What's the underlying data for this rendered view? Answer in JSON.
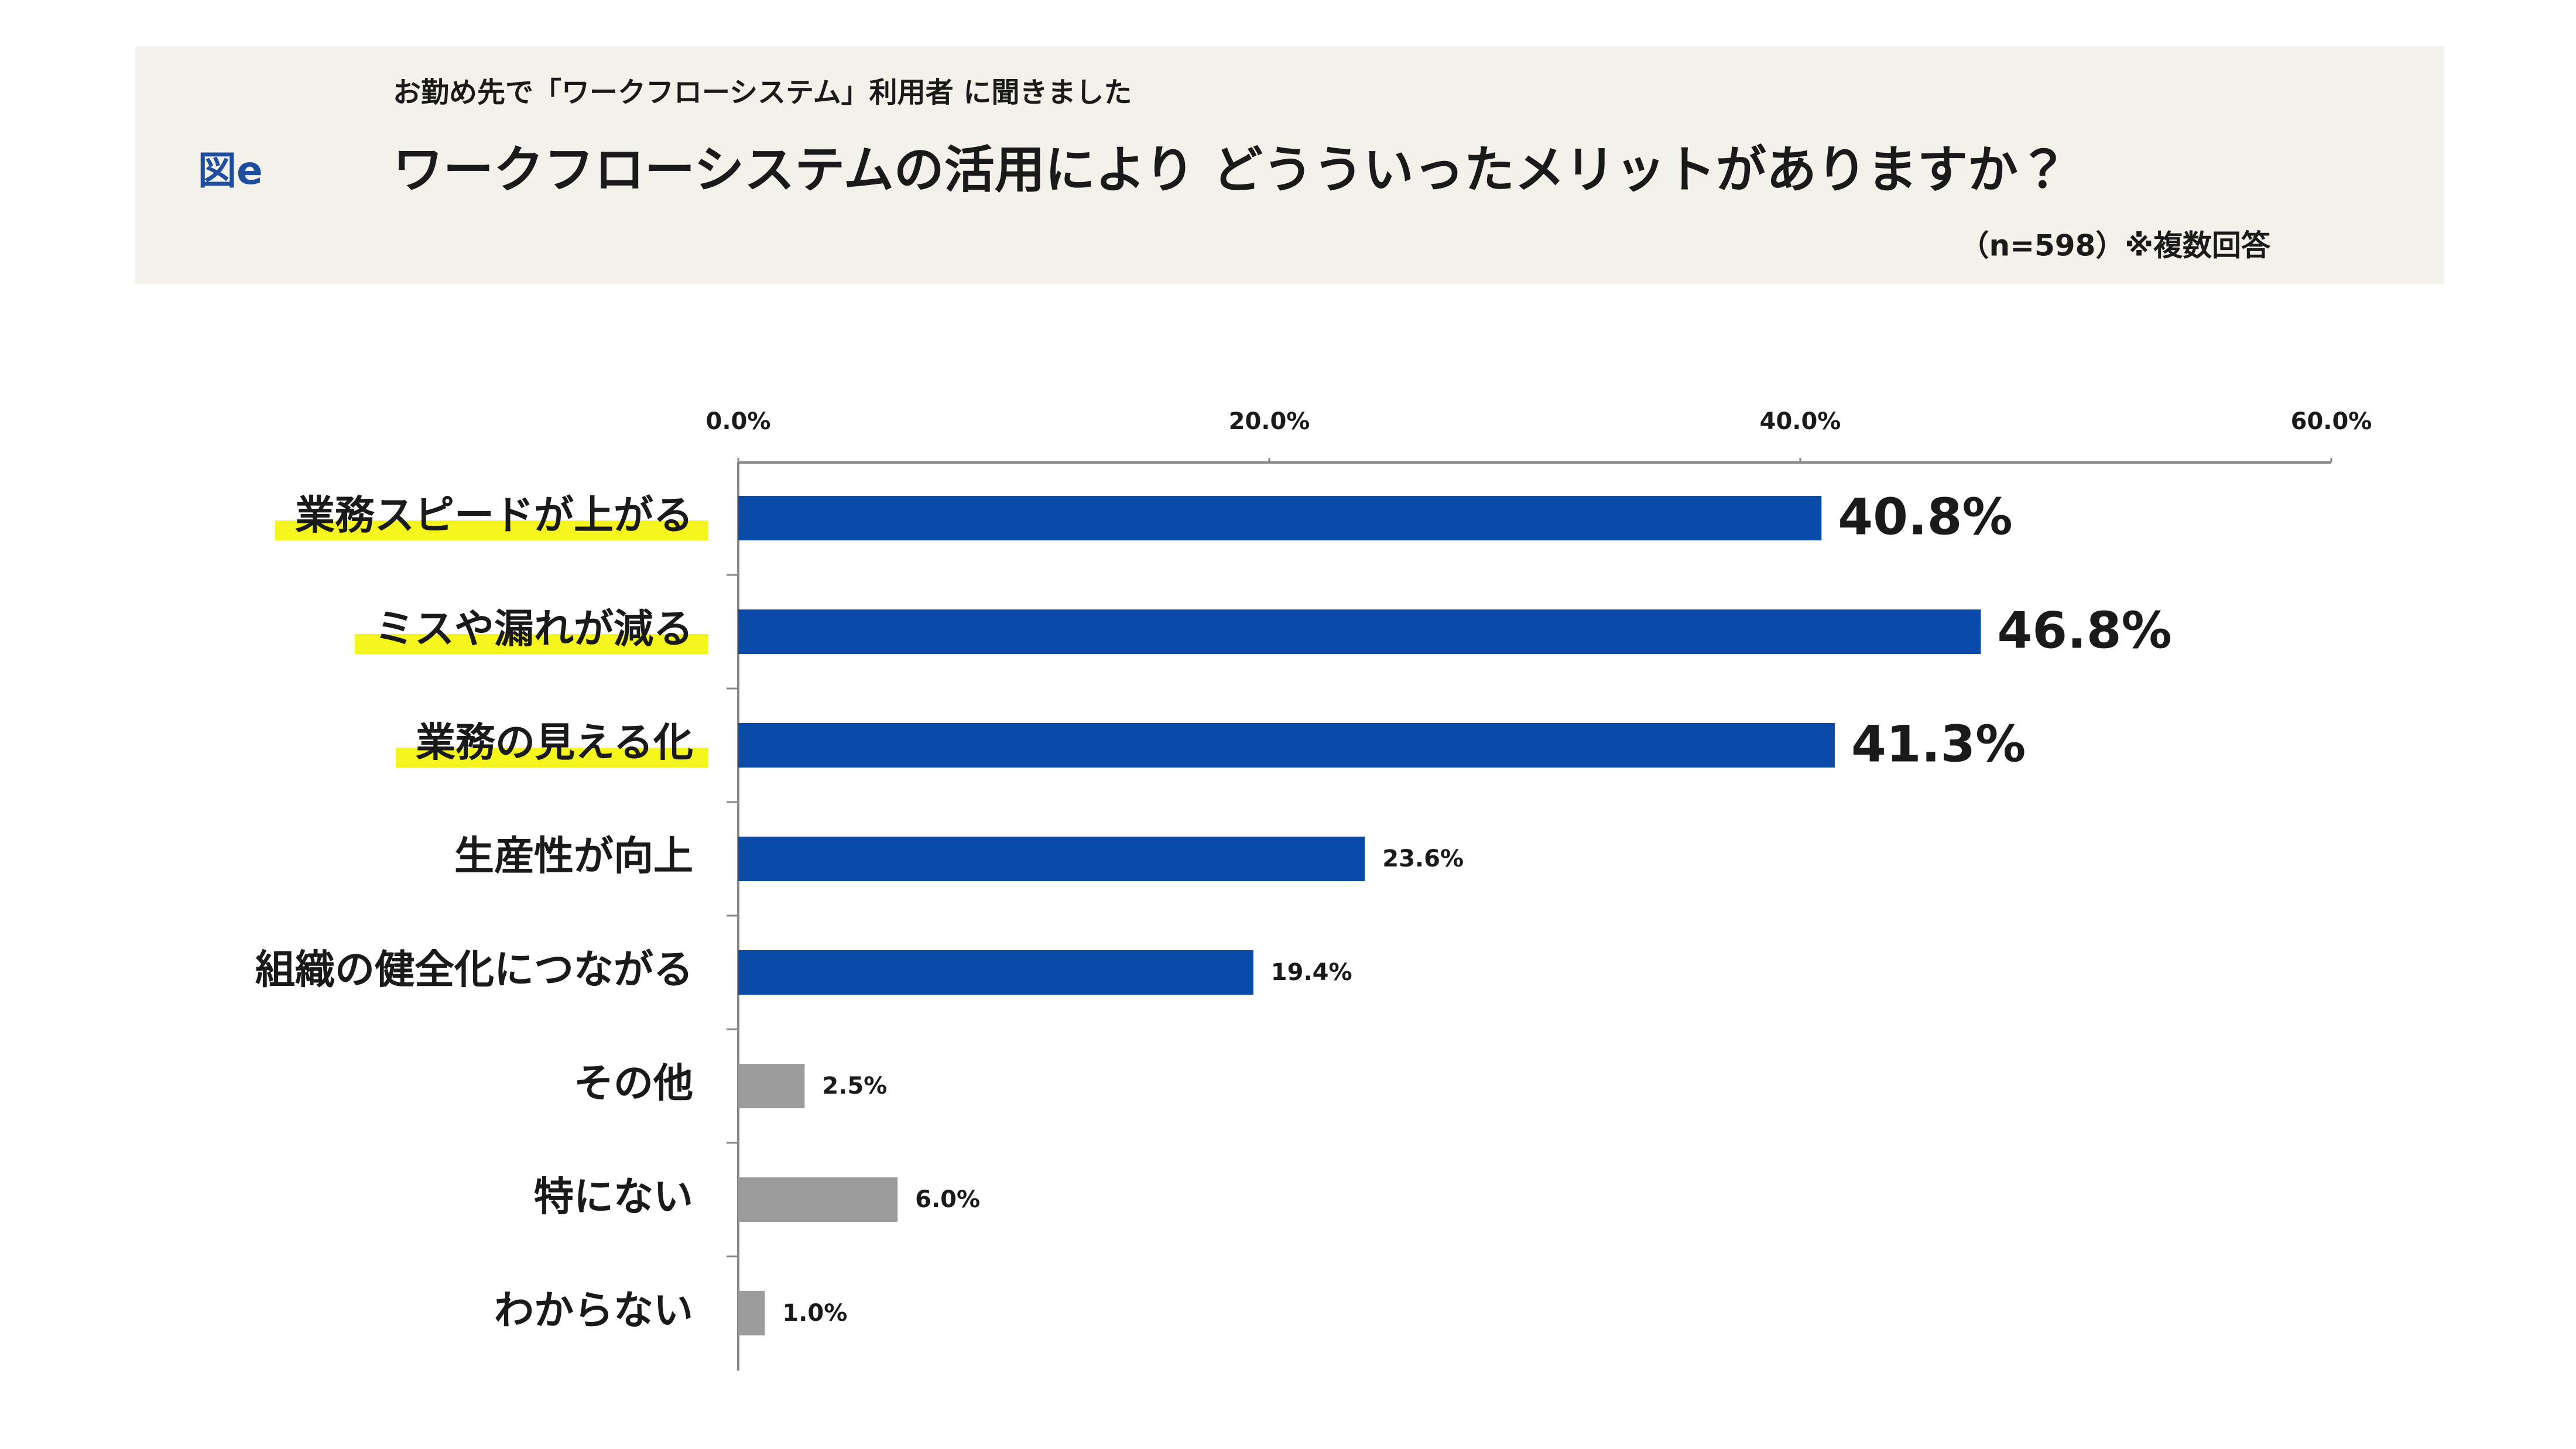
{
  "header": {
    "figure_label": "図e",
    "subtitle": "お勤め先で「ワークフローシステム」利用者 に聞きました",
    "note": "（n=598）※複数回答"
  },
  "chart_data": {
    "type": "bar",
    "orientation": "horizontal",
    "title": "ワークフローシステムの活用により どうういったメリットがありますか？",
    "categories": [
      "業務スピードが上がる",
      "ミスや漏れが減る",
      "業務の見える化",
      "生産性が向上",
      "組織の健全化につながる",
      "その他",
      "特にない",
      "わからない"
    ],
    "values": [
      40.8,
      46.8,
      41.3,
      23.6,
      19.4,
      2.5,
      6.0,
      1.0
    ],
    "value_labels": [
      "40.8%",
      "46.8%",
      "41.3%",
      "23.6%",
      "19.4%",
      "2.5%",
      "6.0%",
      "1.0%"
    ],
    "colors": [
      "#0a4aa8",
      "#0a4aa8",
      "#0a4aa8",
      "#0a4aa8",
      "#0a4aa8",
      "#9b9b9b",
      "#9b9b9b",
      "#9b9b9b"
    ],
    "highlighted": [
      true,
      true,
      true,
      false,
      false,
      false,
      false,
      false
    ],
    "highlight_color": "#f5f51e",
    "xlim": [
      0,
      60
    ],
    "xticks": [
      {
        "value": 0,
        "label": "0.0%"
      },
      {
        "value": 20,
        "label": "20.0%"
      },
      {
        "value": 40,
        "label": "40.0%"
      },
      {
        "value": 60,
        "label": "60.0%"
      }
    ],
    "grid": false
  }
}
